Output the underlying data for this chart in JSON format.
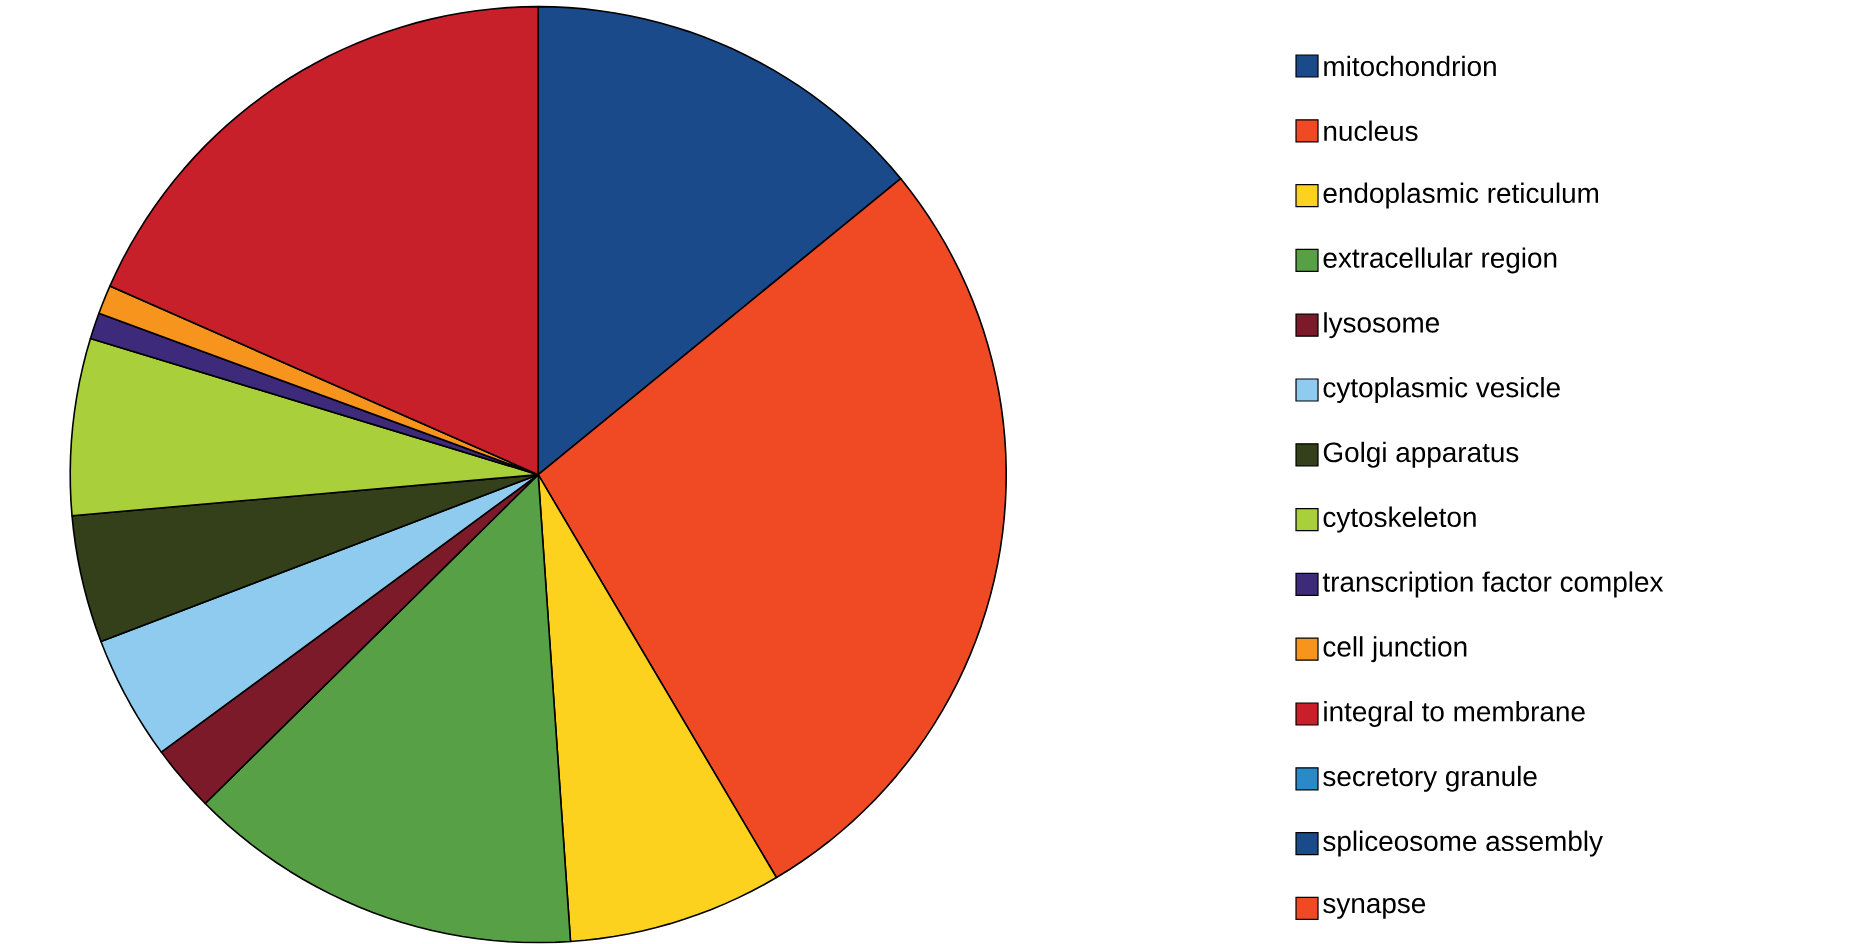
{
  "chart_data": {
    "type": "pie",
    "legend": "right",
    "categories": [
      "mitochondrion",
      "nucleus",
      "endoplasmic reticulum",
      "extracellular region",
      "lysosome",
      "cytoplasmic vesicle",
      "Golgi apparatus",
      "cytoskeleton",
      "transcription factor complex",
      "cell junction",
      "integral to membrane",
      "secretory granule",
      "spliceosome assembly",
      "synapse"
    ],
    "values": [
      14.1,
      27.4,
      7.4,
      13.7,
      2.3,
      4.3,
      4.4,
      6.1,
      0.9,
      1.0,
      18.4,
      0,
      0,
      0
    ],
    "colors": [
      "#1a4a8a",
      "#ef4a23",
      "#fdd21f",
      "#58a046",
      "#7d1a2a",
      "#8ecbee",
      "#334019",
      "#a9cf3a",
      "#3e2a7a",
      "#f7941d",
      "#c8202a",
      "#2a8ac8",
      "#1a4a8a",
      "#ef4a23"
    ]
  }
}
